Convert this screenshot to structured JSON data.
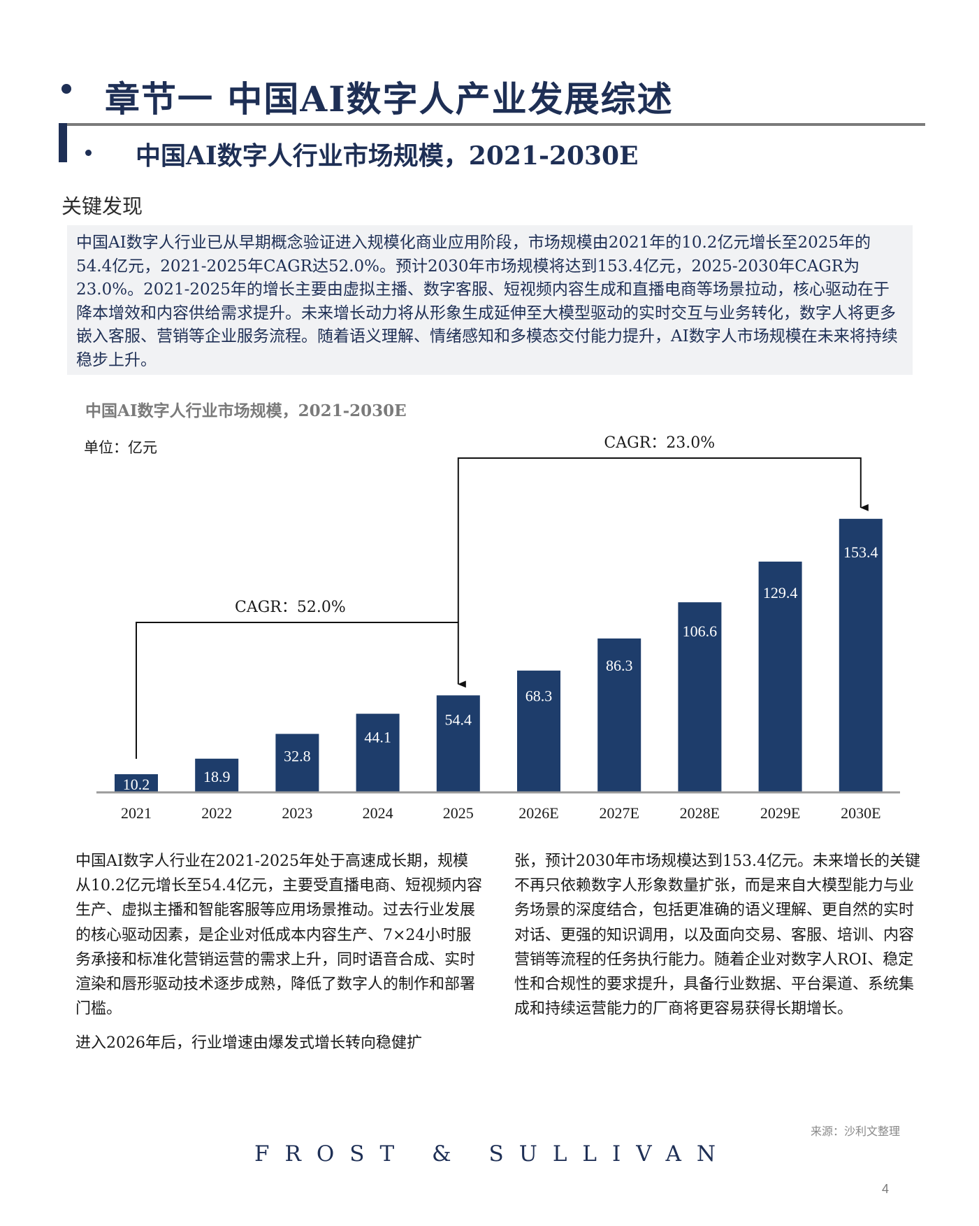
{
  "section": {
    "title": "章节一 中国AI数字人产业发展综述",
    "subtitle": "中国AI数字人行业市场规模，2021-2030E"
  },
  "key_findings": {
    "heading": "关键发现",
    "text": "中国AI数字人行业已从早期概念验证进入规模化商业应用阶段，市场规模由2021年的10.2亿元增长至2025年的54.4亿元，2021-2025年CAGR达52.0%。预计2030年市场规模将达到153.4亿元，2025-2030年CAGR为23.0%。2021-2025年的增长主要由虚拟主播、数字客服、短视频内容生成和直播电商等场景拉动，核心驱动在于降本增效和内容供给需求提升。未来增长动力将从形象生成延伸至大模型驱动的实时交互与业务转化，数字人将更多嵌入客服、营销等企业服务流程。随着语义理解、情绪感知和多模态交付能力提升，AI数字人市场规模在未来将持续稳步上升。"
  },
  "chart_data": {
    "type": "bar",
    "title": "中国AI数字人行业市场规模，2021-2030E",
    "unit_label": "单位：亿元",
    "categories": [
      "2021",
      "2022",
      "2023",
      "2024",
      "2025",
      "2026E",
      "2027E",
      "2028E",
      "2029E",
      "2030E"
    ],
    "values": [
      10.2,
      18.9,
      32.8,
      44.1,
      54.4,
      68.3,
      86.3,
      106.6,
      129.4,
      153.4
    ],
    "bar_color": "#1e3d6b",
    "annotations": [
      {
        "label": "CAGR：52.0%",
        "from": "2021",
        "to": "2025"
      },
      {
        "label": "CAGR：23.0%",
        "from": "2025",
        "to": "2030E"
      }
    ]
  },
  "body": {
    "left_paragraphs": [
      "中国AI数字人行业在2021-2025年处于高速成长期，规模从10.2亿元增长至54.4亿元，主要受直播电商、短视频内容生产、虚拟主播和智能客服等应用场景推动。过去行业发展的核心驱动因素，是企业对低成本内容生产、7×24小时服务承接和标准化营销运营的需求上升，同时语音合成、实时渲染和唇形驱动技术逐步成熟，降低了数字人的制作和部署门槛。",
      "进入2026年后，行业增速由爆发式增长转向稳健扩"
    ],
    "right_paragraphs": [
      "张，预计2030年市场规模达到153.4亿元。未来增长的关键不再只依赖数字人形象数量扩张，而是来自大模型能力与业务场景的深度结合，包括更准确的语义理解、更自然的实时对话、更强的知识调用，以及面向交易、客服、培训、内容营销等流程的任务执行能力。随着企业对数字人ROI、稳定性和合规性的要求提升，具备行业数据、平台渠道、系统集成和持续运营能力的厂商将更容易获得长期增长。"
    ]
  },
  "footer": {
    "source": "来源：沙利文整理",
    "brand": "FROST & SULLIVAN",
    "page": "4"
  }
}
